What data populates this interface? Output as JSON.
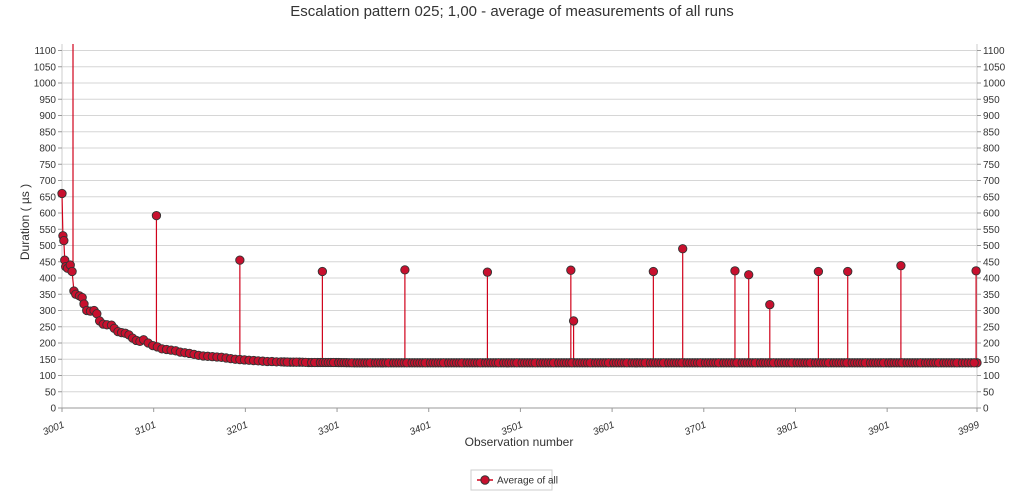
{
  "chart_data": {
    "type": "line",
    "title": "Escalation pattern 025; 1,00 - average of measurements of all runs",
    "xlabel": "Observation number",
    "ylabel": "Duration ( µs )",
    "xlim": [
      3001,
      3999
    ],
    "ylim": [
      0,
      1120
    ],
    "x_ticks": [
      "3001",
      "3101",
      "3201",
      "3301",
      "3401",
      "3501",
      "3601",
      "3701",
      "3801",
      "3901",
      "3999"
    ],
    "y_ticks": [
      0,
      50,
      100,
      150,
      200,
      250,
      300,
      350,
      400,
      450,
      500,
      550,
      600,
      650,
      700,
      750,
      800,
      850,
      900,
      950,
      1000,
      1050,
      1100
    ],
    "grid": true,
    "legend_position": "bottom-center",
    "series": [
      {
        "name": "Average of all",
        "color": "#d0021b",
        "marker_fill": "#c8102e",
        "marker_stroke": "#333333",
        "baseline": [
          [
            3001,
            660
          ],
          [
            3002,
            530
          ],
          [
            3003,
            515
          ],
          [
            3004,
            455
          ],
          [
            3005,
            435
          ],
          [
            3007,
            430
          ],
          [
            3010,
            440
          ],
          [
            3012,
            420
          ],
          [
            3014,
            360
          ],
          [
            3016,
            350
          ],
          [
            3020,
            345
          ],
          [
            3023,
            340
          ],
          [
            3025,
            320
          ],
          [
            3028,
            300
          ],
          [
            3032,
            298
          ],
          [
            3036,
            300
          ],
          [
            3039,
            290
          ],
          [
            3042,
            268
          ],
          [
            3046,
            258
          ],
          [
            3050,
            256
          ],
          [
            3055,
            255
          ],
          [
            3058,
            245
          ],
          [
            3062,
            235
          ],
          [
            3066,
            232
          ],
          [
            3070,
            230
          ],
          [
            3074,
            225
          ],
          [
            3078,
            215
          ],
          [
            3082,
            208
          ],
          [
            3086,
            205
          ],
          [
            3090,
            210
          ],
          [
            3095,
            200
          ],
          [
            3100,
            192
          ],
          [
            3105,
            188
          ],
          [
            3110,
            182
          ],
          [
            3115,
            180
          ],
          [
            3120,
            178
          ],
          [
            3125,
            176
          ],
          [
            3130,
            172
          ],
          [
            3135,
            170
          ],
          [
            3140,
            168
          ],
          [
            3145,
            165
          ],
          [
            3150,
            162
          ],
          [
            3155,
            160
          ],
          [
            3160,
            159
          ],
          [
            3165,
            158
          ],
          [
            3170,
            157
          ],
          [
            3175,
            156
          ],
          [
            3180,
            154
          ],
          [
            3185,
            152
          ],
          [
            3190,
            150
          ],
          [
            3195,
            149
          ],
          [
            3200,
            148
          ],
          [
            3205,
            147
          ],
          [
            3210,
            146
          ],
          [
            3215,
            145
          ],
          [
            3220,
            144
          ],
          [
            3225,
            143
          ],
          [
            3230,
            143
          ],
          [
            3235,
            142
          ],
          [
            3240,
            142
          ],
          [
            3250,
            141
          ],
          [
            3260,
            141
          ],
          [
            3270,
            140
          ],
          [
            3280,
            140
          ],
          [
            3300,
            140
          ],
          [
            3320,
            139
          ],
          [
            3340,
            139
          ],
          [
            3360,
            139
          ],
          [
            3380,
            139
          ],
          [
            3400,
            139
          ],
          [
            3420,
            139
          ],
          [
            3440,
            139
          ],
          [
            3460,
            139
          ],
          [
            3480,
            139
          ],
          [
            3500,
            139
          ],
          [
            3520,
            139
          ],
          [
            3540,
            139
          ],
          [
            3560,
            139
          ],
          [
            3580,
            139
          ],
          [
            3600,
            139
          ],
          [
            3620,
            139
          ],
          [
            3640,
            139
          ],
          [
            3660,
            139
          ],
          [
            3680,
            139
          ],
          [
            3700,
            139
          ],
          [
            3720,
            139
          ],
          [
            3740,
            139
          ],
          [
            3760,
            139
          ],
          [
            3780,
            139
          ],
          [
            3800,
            139
          ],
          [
            3820,
            139
          ],
          [
            3840,
            139
          ],
          [
            3860,
            139
          ],
          [
            3880,
            139
          ],
          [
            3900,
            139
          ],
          [
            3920,
            139
          ],
          [
            3940,
            139
          ],
          [
            3960,
            139
          ],
          [
            3980,
            139
          ],
          [
            3999,
            139
          ]
        ],
        "spikes": [
          [
            3013,
            1120
          ],
          [
            3104,
            592
          ],
          [
            3195,
            455
          ],
          [
            3285,
            420
          ],
          [
            3375,
            425
          ],
          [
            3465,
            418
          ],
          [
            3556,
            424
          ],
          [
            3559,
            268
          ],
          [
            3646,
            420
          ],
          [
            3678,
            490
          ],
          [
            3735,
            422
          ],
          [
            3750,
            410
          ],
          [
            3773,
            318
          ],
          [
            3826,
            420
          ],
          [
            3858,
            420
          ],
          [
            3916,
            438
          ],
          [
            3998,
            422
          ]
        ]
      }
    ]
  }
}
